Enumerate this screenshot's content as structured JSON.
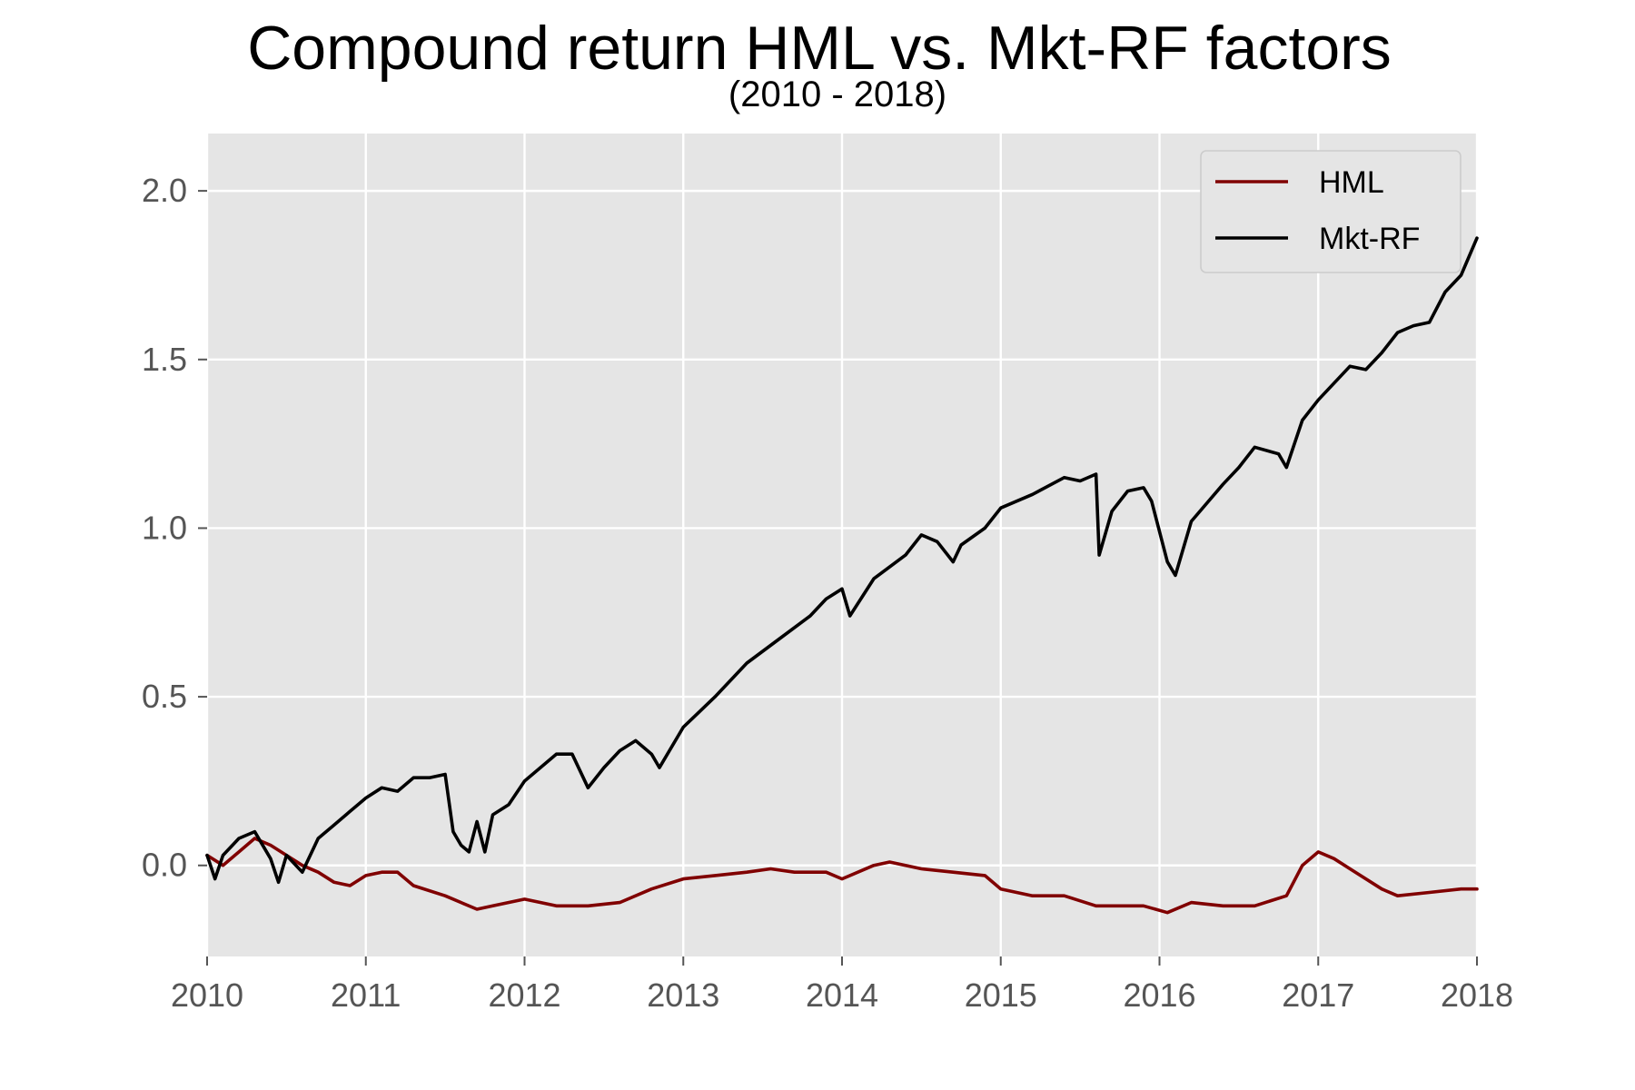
{
  "chart_data": {
    "type": "line",
    "title": "Compound return HML vs. Mkt-RF factors",
    "subtitle": "(2010 - 2018)",
    "xlabel": "",
    "ylabel": "",
    "xlim": [
      2010,
      2018
    ],
    "ylim": [
      -0.27,
      2.17
    ],
    "x_ticks": [
      "2010",
      "2011",
      "2012",
      "2013",
      "2014",
      "2015",
      "2016",
      "2017",
      "2018"
    ],
    "y_ticks": [
      "0.0",
      "0.5",
      "1.0",
      "1.5",
      "2.0"
    ],
    "grid": true,
    "legend_position": "top-right",
    "background_color": "#e5e5e5",
    "grid_color": "#ffffff",
    "series": [
      {
        "name": "HML",
        "color": "#800000",
        "x": [
          2010.0,
          2010.1,
          2010.2,
          2010.3,
          2010.4,
          2010.5,
          2010.6,
          2010.7,
          2010.8,
          2010.9,
          2011.0,
          2011.1,
          2011.2,
          2011.3,
          2011.5,
          2011.7,
          2011.8,
          2012.0,
          2012.2,
          2012.4,
          2012.6,
          2012.8,
          2013.0,
          2013.2,
          2013.4,
          2013.55,
          2013.7,
          2013.9,
          2014.0,
          2014.2,
          2014.3,
          2014.5,
          2014.7,
          2014.9,
          2015.0,
          2015.2,
          2015.4,
          2015.6,
          2015.7,
          2015.9,
          2016.05,
          2016.2,
          2016.4,
          2016.6,
          2016.8,
          2016.9,
          2017.0,
          2017.1,
          2017.2,
          2017.4,
          2017.5,
          2017.7,
          2017.9,
          2018.0
        ],
        "values": [
          0.03,
          0.0,
          0.04,
          0.08,
          0.06,
          0.03,
          0.0,
          -0.02,
          -0.05,
          -0.06,
          -0.03,
          -0.02,
          -0.02,
          -0.06,
          -0.09,
          -0.13,
          -0.12,
          -0.1,
          -0.12,
          -0.12,
          -0.11,
          -0.07,
          -0.04,
          -0.03,
          -0.02,
          -0.01,
          -0.02,
          -0.02,
          -0.04,
          0.0,
          0.01,
          -0.01,
          -0.02,
          -0.03,
          -0.07,
          -0.09,
          -0.09,
          -0.12,
          -0.12,
          -0.12,
          -0.14,
          -0.11,
          -0.12,
          -0.12,
          -0.09,
          0.0,
          0.04,
          0.02,
          -0.01,
          -0.07,
          -0.09,
          -0.08,
          -0.07,
          -0.07
        ]
      },
      {
        "name": "Mkt-RF",
        "color": "#000000",
        "x": [
          2010.0,
          2010.05,
          2010.1,
          2010.2,
          2010.3,
          2010.4,
          2010.45,
          2010.5,
          2010.6,
          2010.7,
          2010.8,
          2010.9,
          2011.0,
          2011.1,
          2011.2,
          2011.3,
          2011.4,
          2011.5,
          2011.55,
          2011.6,
          2011.65,
          2011.7,
          2011.75,
          2011.8,
          2011.9,
          2012.0,
          2012.2,
          2012.3,
          2012.4,
          2012.5,
          2012.6,
          2012.7,
          2012.8,
          2012.85,
          2013.0,
          2013.2,
          2013.4,
          2013.6,
          2013.8,
          2013.9,
          2014.0,
          2014.05,
          2014.2,
          2014.4,
          2014.5,
          2014.6,
          2014.7,
          2014.75,
          2014.9,
          2015.0,
          2015.2,
          2015.4,
          2015.5,
          2015.6,
          2015.62,
          2015.7,
          2015.8,
          2015.9,
          2015.95,
          2016.05,
          2016.1,
          2016.2,
          2016.4,
          2016.5,
          2016.6,
          2016.75,
          2016.8,
          2016.9,
          2017.0,
          2017.2,
          2017.3,
          2017.4,
          2017.5,
          2017.6,
          2017.7,
          2017.8,
          2017.9,
          2018.0
        ],
        "values": [
          0.03,
          -0.04,
          0.03,
          0.08,
          0.1,
          0.02,
          -0.05,
          0.03,
          -0.02,
          0.08,
          0.12,
          0.16,
          0.2,
          0.23,
          0.22,
          0.26,
          0.26,
          0.27,
          0.1,
          0.06,
          0.04,
          0.13,
          0.04,
          0.15,
          0.18,
          0.25,
          0.33,
          0.33,
          0.23,
          0.29,
          0.34,
          0.37,
          0.33,
          0.29,
          0.41,
          0.5,
          0.6,
          0.67,
          0.74,
          0.79,
          0.82,
          0.74,
          0.85,
          0.92,
          0.98,
          0.96,
          0.9,
          0.95,
          1.0,
          1.06,
          1.1,
          1.15,
          1.14,
          1.16,
          0.92,
          1.05,
          1.11,
          1.12,
          1.08,
          0.9,
          0.86,
          1.02,
          1.13,
          1.18,
          1.24,
          1.22,
          1.18,
          1.32,
          1.38,
          1.48,
          1.47,
          1.52,
          1.58,
          1.6,
          1.61,
          1.7,
          1.75,
          1.86
        ]
      }
    ]
  }
}
